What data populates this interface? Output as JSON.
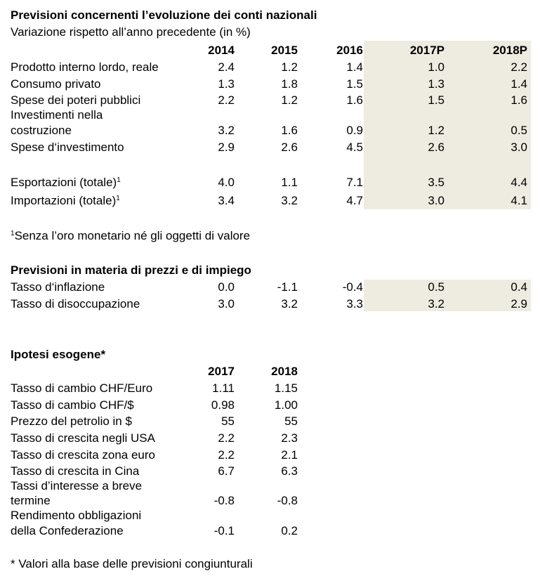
{
  "national_accounts": {
    "title": "Previsioni concernenti l’evoluzione dei conti nazionali",
    "subtitle": "Variazione rispetto all’anno precedente (in %)",
    "columns": [
      "2014",
      "2015",
      "2016",
      "2017P",
      "2018P"
    ],
    "rows": [
      {
        "label": "Prodotto interno lordo, reale",
        "values": [
          "2.4",
          "1.2",
          "1.4",
          "1.0",
          "2.2"
        ]
      },
      {
        "label": "Consumo privato",
        "values": [
          "1.3",
          "1.8",
          "1.5",
          "1.3",
          "1.4"
        ]
      },
      {
        "label": "Spese dei poteri pubblici",
        "values": [
          "2.2",
          "1.2",
          "1.6",
          "1.5",
          "1.6"
        ]
      },
      {
        "label_line1": "Investimenti nella",
        "label_line2": "costruzione",
        "values": [
          "3.2",
          "1.6",
          "0.9",
          "1.2",
          "0.5"
        ]
      },
      {
        "label": "Spese d‘investimento",
        "values": [
          "2.9",
          "2.6",
          "4.5",
          "2.6",
          "3.0"
        ]
      },
      {
        "label": "Esportazioni (totale)",
        "sup": "1",
        "values": [
          "4.0",
          "1.1",
          "7.1",
          "3.5",
          "4.4"
        ]
      },
      {
        "label": "Importazioni (totale)",
        "sup": "1",
        "values": [
          "3.4",
          "3.2",
          "4.7",
          "3.0",
          "4.1"
        ]
      }
    ],
    "footnote_mark": "1",
    "footnote": "Senza l’oro monetario né gli oggetti di valore"
  },
  "prices_employment": {
    "title": "Previsioni in materia di prezzi e di impiego",
    "rows": [
      {
        "label": "Tasso d‘inflazione",
        "values": [
          "0.0",
          "-1.1",
          "-0.4",
          "0.5",
          "0.4"
        ]
      },
      {
        "label": "Tasso di disoccupazione",
        "values": [
          "3.0",
          "3.2",
          "3.3",
          "3.2",
          "2.9"
        ]
      }
    ]
  },
  "exogenous": {
    "title": "Ipotesi esogene*",
    "columns": [
      "2017",
      "2018"
    ],
    "rows": [
      {
        "label": "Tasso di cambio CHF/Euro",
        "values": [
          "1.11",
          "1.15"
        ]
      },
      {
        "label": "Tasso di cambio CHF/$",
        "values": [
          "0.98",
          "1.00"
        ]
      },
      {
        "label": "Prezzo del petrolio in $",
        "values": [
          "55",
          "55"
        ]
      },
      {
        "label": "Tasso di crescita negli USA",
        "values": [
          "2.2",
          "2.3"
        ]
      },
      {
        "label": "Tasso di crescita zona euro",
        "values": [
          "2.2",
          "2.1"
        ]
      },
      {
        "label": "Tasso di crescita in Cina",
        "values": [
          "6.7",
          "6.3"
        ]
      },
      {
        "label_line1": "Tassi d’interesse a breve",
        "label_line2": "termine",
        "values": [
          "-0.8",
          "-0.8"
        ]
      },
      {
        "label_line1": "Rendimento obbligazioni",
        "label_line2": "della Confederazione",
        "values": [
          "-0.1",
          "0.2"
        ]
      }
    ],
    "footnote": "* Valori alla base delle previsioni congiunturali"
  },
  "colors": {
    "shade": "#eeebe0"
  }
}
